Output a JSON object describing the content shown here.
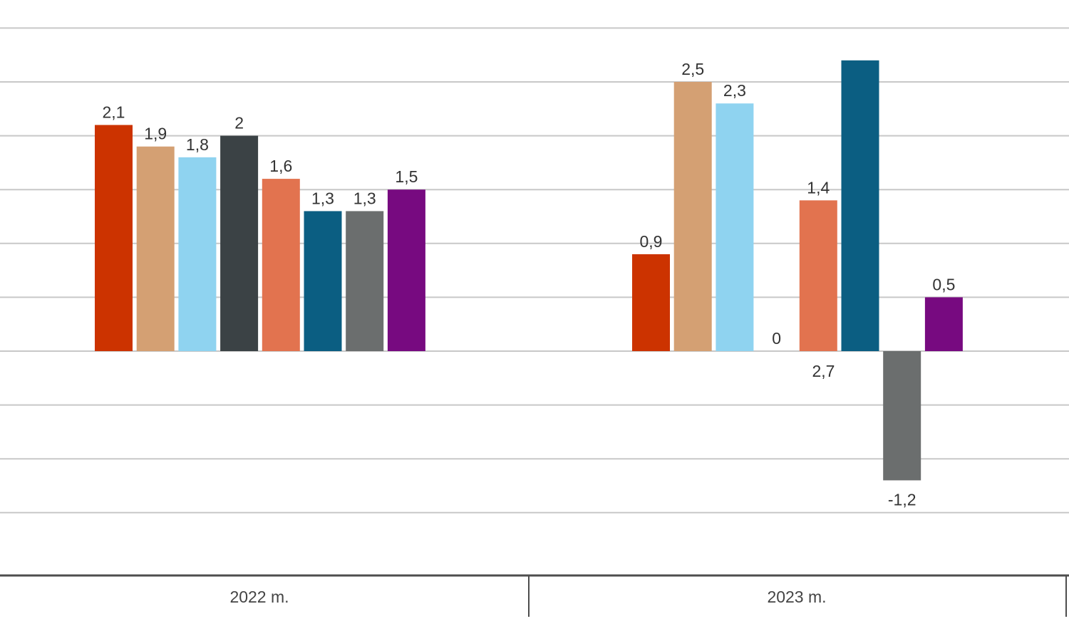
{
  "chart_data": {
    "type": "bar",
    "categories": [
      "2022 m.",
      "2023 m."
    ],
    "ylim": [
      -1.5,
      3.0
    ],
    "grid": true,
    "legend": "none",
    "series": [
      {
        "color": "#cc3300",
        "values": [
          2.1,
          0.9
        ],
        "labels": [
          "2,1",
          "0,9"
        ]
      },
      {
        "color": "#d4a073",
        "values": [
          1.9,
          2.5
        ],
        "labels": [
          "1,9",
          "2,5"
        ]
      },
      {
        "color": "#8fd3f0",
        "values": [
          1.8,
          2.3
        ],
        "labels": [
          "1,8",
          "2,3"
        ]
      },
      {
        "color": "#3b4245",
        "values": [
          2.0,
          0
        ],
        "labels": [
          "2",
          "0"
        ]
      },
      {
        "color": "#e2734f",
        "values": [
          1.6,
          1.4
        ],
        "labels": [
          "1,6",
          "1,4"
        ]
      },
      {
        "color": "#0b5e82",
        "values": [
          1.3,
          2.7
        ],
        "labels": [
          "1,3",
          "2,7"
        ]
      },
      {
        "color": "#6b6e6e",
        "values": [
          1.3,
          -1.2
        ],
        "labels": [
          "1,3",
          "-1,2"
        ]
      },
      {
        "color": "#770a80",
        "values": [
          1.5,
          0.5
        ],
        "labels": [
          "1,5",
          "0,5"
        ]
      }
    ]
  }
}
